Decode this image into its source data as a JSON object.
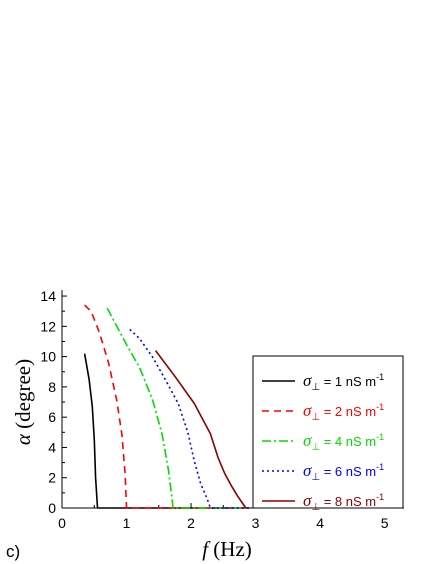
{
  "chart_data": {
    "type": "line",
    "panel_label": "c)",
    "xlabel": {
      "symbol": "f",
      "unit": " (Hz)"
    },
    "ylabel": {
      "symbol": "α",
      "unit": " (degree)"
    },
    "xlim": [
      0,
      5.3
    ],
    "ylim": [
      0,
      14.4
    ],
    "xticks": [
      0,
      1,
      2,
      3,
      4,
      5
    ],
    "yticks": [
      0,
      2,
      4,
      6,
      8,
      10,
      12,
      14
    ],
    "grid": false,
    "legend_position": "right",
    "legend_prefix": "σ",
    "legend_sub": "⊥",
    "series": [
      {
        "name": " = 1 nS m",
        "sup": "-1",
        "color": "#000000",
        "dash": "",
        "x": [
          0.35,
          0.42,
          0.47,
          0.5,
          0.52,
          0.55,
          2.9
        ],
        "y": [
          10.2,
          8.5,
          6.7,
          4.5,
          2.0,
          0.0,
          0.0
        ]
      },
      {
        "name": " = 2 nS m",
        "sup": "-1",
        "color": "#ff0000",
        "dash": "7,5",
        "x": [
          0.35,
          0.45,
          0.58,
          0.72,
          0.85,
          0.93,
          0.98,
          1.0,
          2.9
        ],
        "y": [
          13.4,
          13.0,
          11.6,
          9.6,
          7.1,
          4.8,
          2.2,
          0.0,
          0.0
        ]
      },
      {
        "name": " = 4 nS m",
        "sup": "-1",
        "color": "#00dd00",
        "dash": "9,3,2,3",
        "x": [
          0.7,
          0.85,
          1.0,
          1.2,
          1.4,
          1.55,
          1.65,
          1.7,
          1.72,
          2.9
        ],
        "y": [
          13.2,
          12.0,
          10.8,
          9.3,
          7.2,
          4.9,
          2.5,
          0.8,
          0.0,
          0.0
        ]
      },
      {
        "name": " = 6 nS m",
        "sup": "-1",
        "color": "#0000ff",
        "dash": "2,3",
        "x": [
          1.05,
          1.2,
          1.4,
          1.6,
          1.8,
          1.95,
          2.05,
          2.15,
          2.25,
          2.3,
          2.9
        ],
        "y": [
          11.8,
          11.2,
          10.0,
          8.5,
          6.9,
          5.0,
          3.1,
          1.6,
          0.6,
          0.0,
          0.0
        ]
      },
      {
        "name": " = 8 nS m",
        "sup": "-1",
        "color": "#8b0000",
        "dash": "",
        "x": [
          1.45,
          1.75,
          2.05,
          2.3,
          2.42,
          2.52,
          2.62,
          2.72,
          2.8,
          2.85
        ],
        "y": [
          10.4,
          8.7,
          6.9,
          4.9,
          3.3,
          2.3,
          1.5,
          0.8,
          0.3,
          0.0
        ]
      }
    ]
  }
}
